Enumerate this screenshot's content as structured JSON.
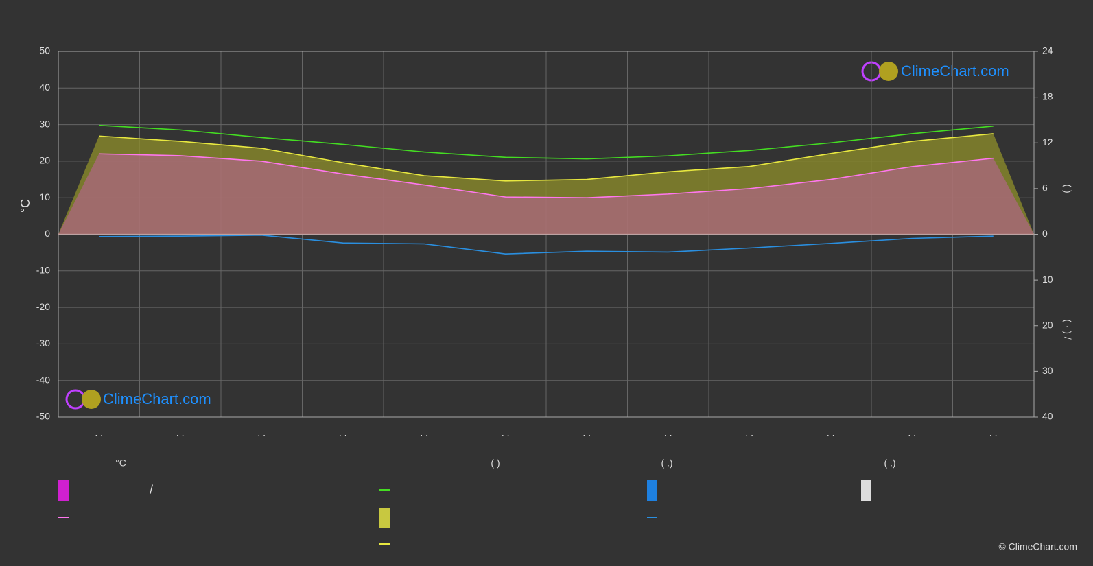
{
  "chart_data": {
    "type": "line",
    "y_label": "°C",
    "y2_label": "(     )",
    "y3_label": "( · )  /",
    "categories": [
      ". .",
      ". .",
      ". .",
      ". .",
      ". .",
      ". .",
      ". .",
      ". .",
      ". .",
      ". .",
      ". .",
      ". ."
    ],
    "ylim": [
      -50,
      50
    ],
    "yticks": [
      -50,
      -40,
      -30,
      -20,
      -10,
      0,
      10,
      20,
      30,
      40,
      50
    ],
    "y2lim": [
      0,
      24
    ],
    "y2ticks": [
      0,
      6,
      12,
      18,
      24
    ],
    "y3lim": [
      0,
      40
    ],
    "y3ticks": [
      10,
      20,
      30,
      40
    ],
    "grid": true,
    "series": [
      {
        "name": "—",
        "color": "#44dd22",
        "axis": "y2",
        "values": [
          14.3,
          13.7,
          12.7,
          11.8,
          10.8,
          10.1,
          9.9,
          10.3,
          11.0,
          12.0,
          13.2,
          14.2
        ]
      },
      {
        "name": "—",
        "color": "#e8e840",
        "axis": "y2",
        "values": [
          12.9,
          12.2,
          11.3,
          9.4,
          7.7,
          7.0,
          7.2,
          8.2,
          8.9,
          10.6,
          12.2,
          13.2
        ]
      },
      {
        "name": "—",
        "color": "#ff77ee",
        "axis": "y",
        "values": [
          22,
          21.5,
          20,
          16.5,
          13.5,
          10.2,
          10,
          11,
          12.5,
          15,
          18.5,
          20.8
        ]
      },
      {
        "name": "—",
        "color": "#2a8fe0",
        "axis": "y3",
        "values": [
          0.5,
          0.4,
          0.2,
          1.9,
          2.1,
          4.3,
          3.7,
          3.9,
          3.0,
          2.0,
          0.9,
          0.4
        ]
      }
    ],
    "legend_headers": [
      "°C",
      "(          )",
      "(   .)",
      "(   .)"
    ],
    "legend_note": "/",
    "watermark": "ClimeChart.com",
    "credit": "© ClimeChart.com"
  }
}
